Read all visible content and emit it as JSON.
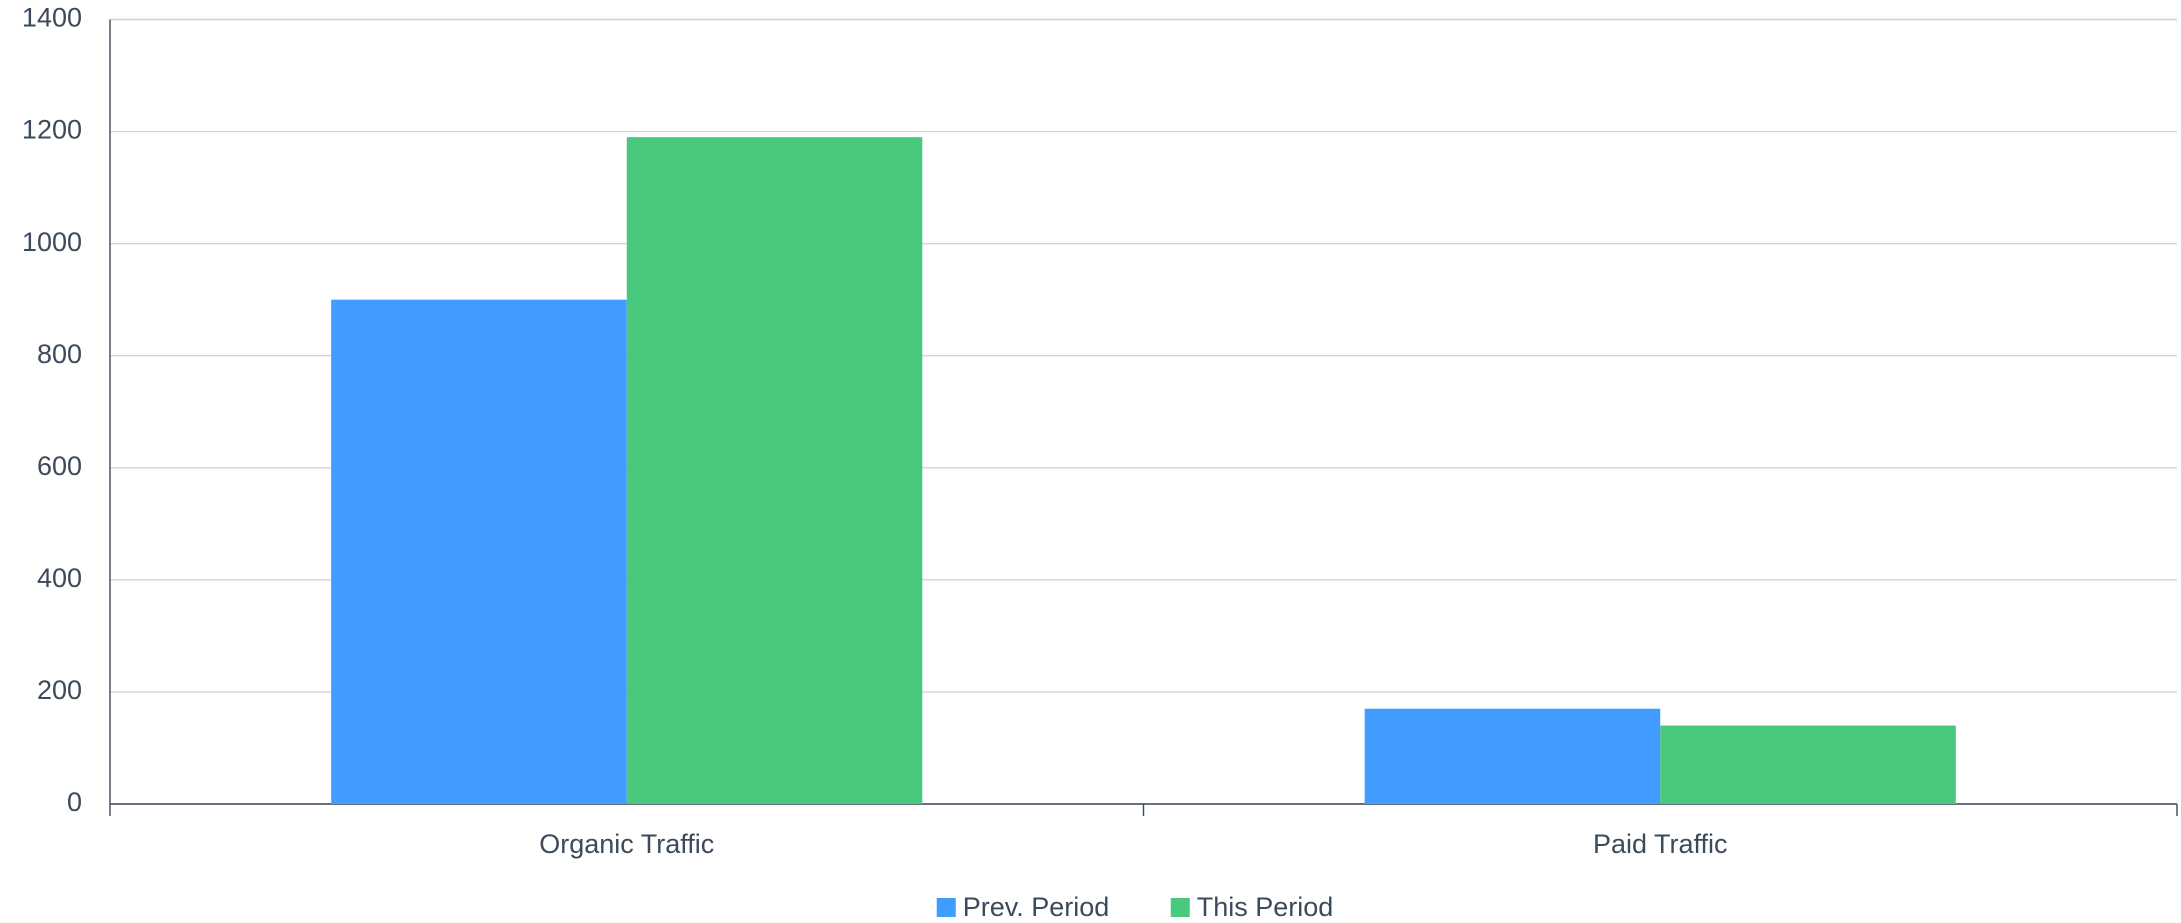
{
  "chart_data": {
    "type": "bar",
    "categories": [
      "Organic Traffic",
      "Paid Traffic"
    ],
    "series": [
      {
        "name": "Prev. Period",
        "color": "#409cff",
        "values": [
          900,
          170
        ]
      },
      {
        "name": "This Period",
        "color": "#48c97e",
        "values": [
          1190,
          140
        ]
      }
    ],
    "ylim": [
      0,
      1400
    ],
    "yticks": [
      0,
      200,
      400,
      600,
      800,
      1000,
      1200,
      1400
    ],
    "grid": true,
    "legend": "bottom"
  }
}
